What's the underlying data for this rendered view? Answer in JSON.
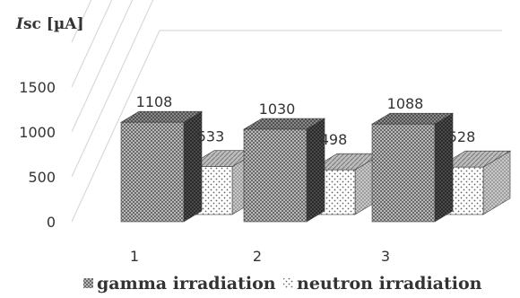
{
  "chart_data": {
    "type": "bar",
    "ylabel_italic": "I",
    "ylabel_rest": "sc [µA]",
    "categories": [
      "1",
      "2",
      "3"
    ],
    "yticks": [
      "0",
      "500",
      "1000",
      "1500"
    ],
    "ylim": [
      0,
      2000
    ],
    "grid": true,
    "legend_position": "bottom",
    "series": [
      {
        "name": "gamma irradiation",
        "values": [
          1108,
          1030,
          1088
        ]
      },
      {
        "name": "neutron irradiation",
        "values": [
          533,
          498,
          528
        ]
      }
    ],
    "colors": {
      "bar_face": "#9a9a9a",
      "bar_side": "#555555",
      "bar_top": "#7a7a7a",
      "neutron_face": "#ffffff",
      "grid": "#d9d9d9",
      "text": "#333333"
    }
  }
}
